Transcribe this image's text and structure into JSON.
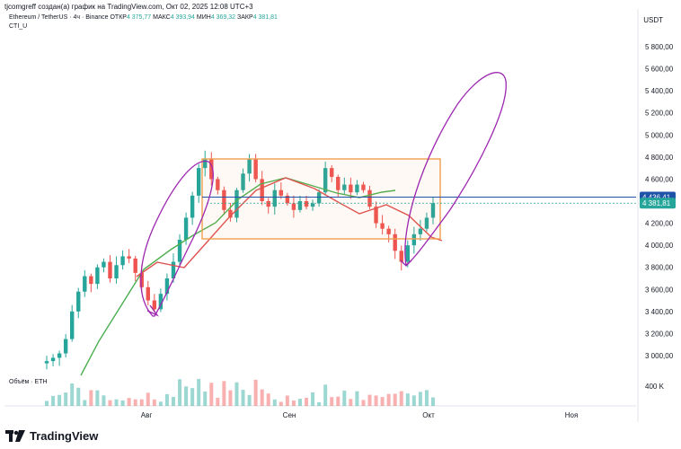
{
  "header": {
    "text": "tjcomgreff создан(а) график на TradingView.com, Окт 02, 2025 12:08 UTC+3"
  },
  "legend": {
    "symbol": "Ethereum / TetherUS · 4ч · Binance",
    "open_label": "ОТКР",
    "open": "4 375,77",
    "high_label": "МАКС",
    "high": "4 393,94",
    "low_label": "МИН",
    "low": "4 369,32",
    "close_label": "ЗАКР",
    "close": "4 381,81",
    "indicator": "CTI_U"
  },
  "currency": "USDT",
  "volume_label": "Объём · ETH",
  "volume_scale_label": "400 K",
  "brand": "TradingView",
  "colors": {
    "up": "#26a69a",
    "down": "#ef5350",
    "box": "#f0a050",
    "purple": "#9c27b0",
    "line": "#1e53a8"
  },
  "chart_data": {
    "type": "candlestick",
    "title": "Ethereum / TetherUS · 4ч · Binance",
    "x_ticks": [
      "Авг",
      "Сен",
      "Окт",
      "Ноя"
    ],
    "y_ticks": [
      "5 800,00",
      "5 600,00",
      "5 400,00",
      "5 200,00",
      "5 000,00",
      "4 800,00",
      "4 600,00",
      "4 200,00",
      "4 000,00",
      "3 800,00",
      "3 600,00",
      "3 400,00",
      "3 200,00",
      "3 000,00"
    ],
    "ylim": [
      2850,
      6000
    ],
    "price_labels": [
      {
        "value": 4436.41,
        "text": "4 436,41",
        "color": "#1e53a8"
      },
      {
        "value": 4381.81,
        "text": "4 381,81",
        "color": "#26a69a"
      }
    ],
    "series": [
      {
        "name": "close",
        "values": [
          2950,
          2980,
          3020,
          3150,
          3400,
          3580,
          3720,
          3650,
          3800,
          3850,
          3700,
          3820,
          3900,
          3880,
          3750,
          3620,
          3500,
          3420,
          3560,
          3700,
          3850,
          4050,
          4250,
          4450,
          4700,
          4780,
          4600,
          4500,
          4320,
          4250,
          4500,
          4650,
          4780,
          4600,
          4400,
          4350,
          4500,
          4450,
          4380,
          4320,
          4400,
          4350,
          4380,
          4480,
          4700,
          4620,
          4500,
          4550,
          4480,
          4550,
          4500,
          4350,
          4200,
          4150,
          4100,
          3950,
          3850,
          4000,
          4100,
          4150,
          4250,
          4382
        ]
      },
      {
        "name": "CTI_U upper",
        "values": []
      },
      {
        "name": "volume",
        "values": []
      }
    ],
    "annotations": [
      "rectangle range",
      "purple ellipses",
      "horizontal line 4 436,41"
    ]
  }
}
